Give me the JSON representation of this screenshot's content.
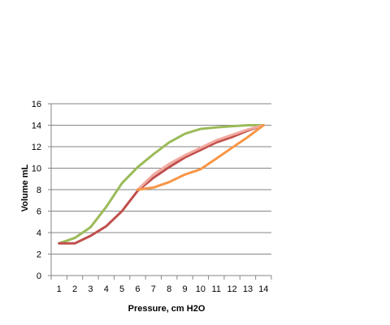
{
  "chart_data": {
    "type": "line",
    "xlabel": "Pressure, cm H2O",
    "ylabel": "Volume mL",
    "x": [
      1,
      2,
      3,
      4,
      5,
      6,
      7,
      8,
      9,
      10,
      11,
      12,
      13,
      14
    ],
    "xlim": [
      0.5,
      14.5
    ],
    "ylim": [
      0,
      16
    ],
    "yticks": [
      0,
      2,
      4,
      6,
      8,
      10,
      12,
      14,
      16
    ],
    "grid": "horizontal",
    "legend": "none",
    "series": [
      {
        "color": "#9bbb59",
        "points": [
          [
            1,
            3
          ],
          [
            2,
            3.5
          ],
          [
            3,
            4.5
          ],
          [
            4,
            6.4
          ],
          [
            5,
            8.6
          ],
          [
            6,
            10.1
          ],
          [
            7,
            11.3
          ],
          [
            8,
            12.4
          ],
          [
            9,
            13.2
          ],
          [
            10,
            13.65
          ],
          [
            11,
            13.8
          ],
          [
            12,
            13.9
          ],
          [
            13,
            14
          ],
          [
            14,
            14
          ]
        ]
      },
      {
        "color": "#c0504d",
        "points": [
          [
            1,
            3
          ],
          [
            2,
            3
          ],
          [
            3,
            3.7
          ],
          [
            4,
            4.6
          ],
          [
            5,
            6
          ],
          [
            6,
            7.9
          ],
          [
            7,
            9.1
          ],
          [
            8,
            10.1
          ],
          [
            9,
            11
          ],
          [
            10,
            11.7
          ],
          [
            11,
            12.4
          ],
          [
            12,
            12.9
          ],
          [
            13,
            13.5
          ],
          [
            14,
            14
          ]
        ]
      },
      {
        "color": "#f2aaa0",
        "points": [
          [
            6,
            8
          ],
          [
            7,
            9.4
          ],
          [
            8,
            10.4
          ],
          [
            9,
            11.2
          ],
          [
            10,
            11.9
          ],
          [
            11,
            12.6
          ],
          [
            12,
            13.1
          ],
          [
            13,
            13.6
          ],
          [
            14,
            14
          ]
        ]
      },
      {
        "color": "#f79646",
        "points": [
          [
            6,
            8
          ],
          [
            7,
            8.2
          ],
          [
            8,
            8.7
          ],
          [
            9,
            9.4
          ],
          [
            10,
            9.9
          ],
          [
            11,
            10.9
          ],
          [
            12,
            11.9
          ],
          [
            13,
            12.9
          ],
          [
            14,
            14
          ]
        ]
      }
    ]
  }
}
